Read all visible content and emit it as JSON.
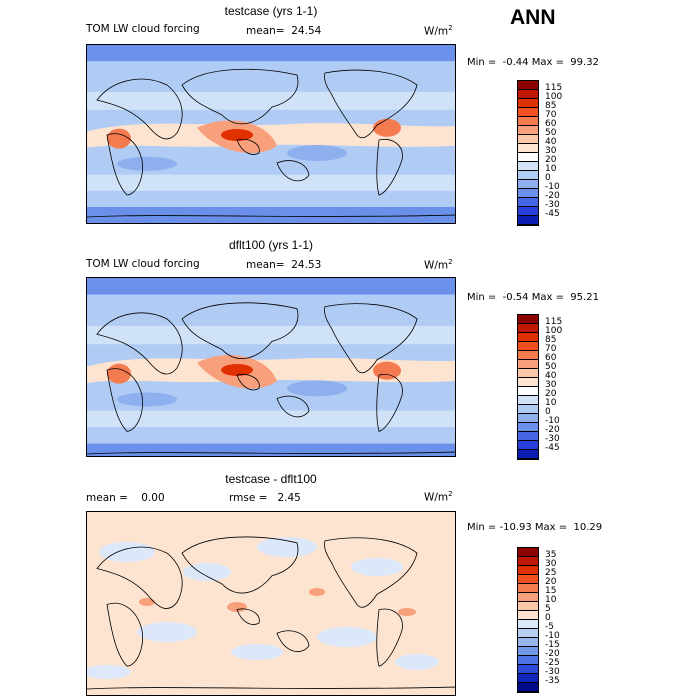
{
  "season": "ANN",
  "panels": [
    {
      "title": "testcase (yrs 1-1)",
      "field": "TOM LW cloud forcing",
      "stat1": "mean=  24.54",
      "stat2": "",
      "units": "W/m",
      "units_sup": "2",
      "min_max": "Min =  -0.44 Max =  99.32",
      "kind": "full",
      "colorbar": {
        "labels": [
          "115",
          "100",
          "85",
          "70",
          "60",
          "50",
          "40",
          "30",
          "20",
          "10",
          "0",
          "-10",
          "-20",
          "-30",
          "-45"
        ],
        "colors": [
          "#8c0000",
          "#c01800",
          "#e03000",
          "#f05020",
          "#f47a50",
          "#f8a07c",
          "#fcc8a8",
          "#fde4d0",
          "#ffffff",
          "#d4e4f8",
          "#b0ccf4",
          "#8eb0ee",
          "#6a90ea",
          "#4466e2",
          "#2840d8",
          "#0a1eb4"
        ]
      }
    },
    {
      "title": "dflt100 (yrs 1-1)",
      "field": "TOM LW cloud forcing",
      "stat1": "mean=  24.53",
      "stat2": "",
      "units": "W/m",
      "units_sup": "2",
      "min_max": "Min =  -0.54 Max =  95.21",
      "kind": "full",
      "colorbar": {
        "labels": [
          "115",
          "100",
          "85",
          "70",
          "60",
          "50",
          "40",
          "30",
          "20",
          "10",
          "0",
          "-10",
          "-20",
          "-30",
          "-45"
        ],
        "colors": [
          "#8c0000",
          "#c01800",
          "#e03000",
          "#f05020",
          "#f47a50",
          "#f8a07c",
          "#fcc8a8",
          "#fde4d0",
          "#ffffff",
          "#d4e4f8",
          "#b0ccf4",
          "#8eb0ee",
          "#6a90ea",
          "#4466e2",
          "#2840d8",
          "#0a1eb4"
        ]
      }
    },
    {
      "title": "testcase - dflt100",
      "field": "",
      "stat1": "mean =    0.00",
      "stat2": "rmse =   2.45",
      "units": "W/m",
      "units_sup": "2",
      "min_max": "Min = -10.93 Max =  10.29",
      "kind": "diff",
      "colorbar": {
        "labels": [
          "35",
          "30",
          "25",
          "20",
          "15",
          "10",
          "5",
          "0",
          "-5",
          "-10",
          "-15",
          "-20",
          "-25",
          "-30",
          "-35"
        ],
        "colors": [
          "#8c0000",
          "#c01800",
          "#e03000",
          "#f05020",
          "#f47a50",
          "#f8a07c",
          "#fcc8a8",
          "#fde4d0",
          "#dce8fa",
          "#b8d0f4",
          "#96b6f0",
          "#7298ea",
          "#4c72e4",
          "#2c4cd8",
          "#1026b8",
          "#000a8c"
        ]
      }
    }
  ]
}
